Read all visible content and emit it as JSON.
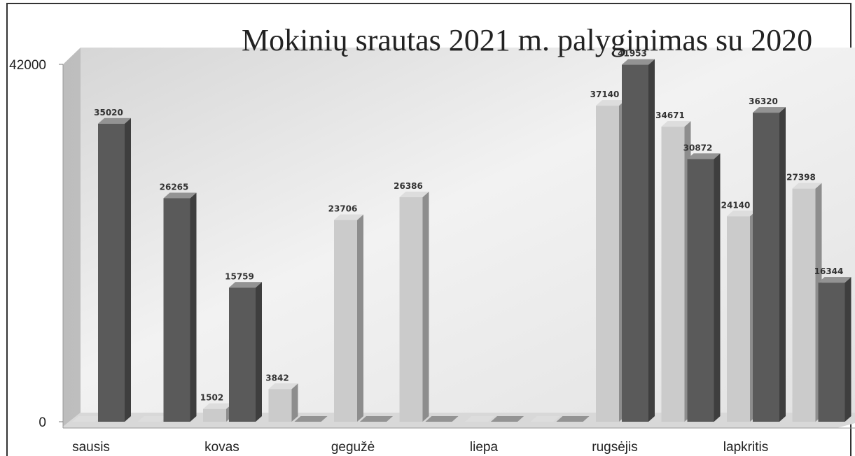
{
  "chart_data": {
    "type": "bar3d",
    "title": "Mokinių srautas 2021 m. palyginimas su 2020",
    "categories": [
      "sausis",
      null,
      "kovas",
      null,
      "gegužė",
      null,
      "liepa",
      null,
      "rugsėjis",
      null,
      "lapkritis",
      null
    ],
    "series": [
      {
        "color": "#cbcbcb",
        "values": [
          0,
          0,
          1502,
          3842,
          23706,
          26386,
          0,
          0,
          37140,
          34671,
          24140,
          27398
        ]
      },
      {
        "color": "#5a5a5a",
        "values": [
          35020,
          26265,
          15759,
          0,
          0,
          0,
          0,
          0,
          41953,
          30872,
          36320,
          16344
        ]
      }
    ],
    "ylim": [
      0,
      42000
    ],
    "yticks": [
      0,
      42000
    ]
  }
}
